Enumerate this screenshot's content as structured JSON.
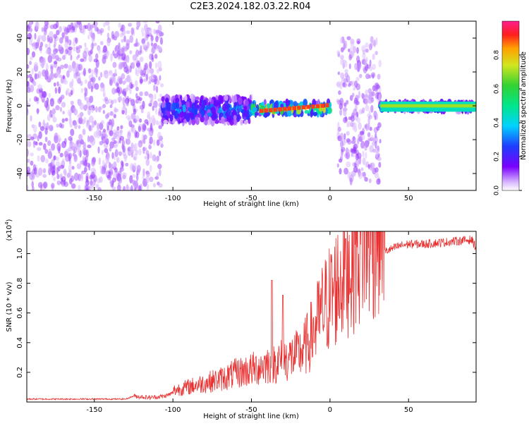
{
  "title": "C2E3.2024.182.03.22.R04",
  "colors": {
    "axis": "#000000",
    "snr_line": "#e83030",
    "spectro_low": "#7a00ff",
    "spectro_mid_blue": "#1e64ff",
    "spectro_cyan": "#00e6c8",
    "spectro_green": "#32d232",
    "spectro_red": "#ff1e1e"
  },
  "colorbar": {
    "label": "Normalized spectral amplitude",
    "ticks": [
      "0.0",
      "0.2",
      "0.4",
      "0.6",
      "0.8"
    ],
    "tick_values": [
      0.0,
      0.2,
      0.4,
      0.6,
      0.8
    ],
    "range": [
      0,
      1
    ],
    "colormap": "rainbow (purple-blue-cyan-green-yellow-orange-red-magenta)"
  },
  "chart_data": [
    {
      "type": "heatmap",
      "xlabel": "Height of straight line (km)",
      "ylabel": "Frequency (Hz)",
      "xlim": [
        -193,
        93
      ],
      "ylim": [
        -50,
        50
      ],
      "xticks": [
        -150,
        -100,
        -50,
        0,
        50
      ],
      "xtick_labels": [
        "-150",
        "-100",
        "-50",
        "0",
        "50"
      ],
      "yticks": [
        -40,
        -20,
        0,
        20,
        40
      ],
      "ytick_labels": [
        "-40",
        "-20",
        "0",
        "20",
        "40"
      ],
      "grid": false,
      "regions": [
        {
          "x_range": [
            -193,
            -130
          ],
          "freq_range": [
            -50,
            50
          ],
          "amplitude": 0.1
        },
        {
          "x_range": [
            -130,
            -107
          ],
          "freq_range": [
            -50,
            50
          ],
          "amplitude": 0.1
        },
        {
          "x_range": [
            -107,
            -50
          ],
          "freq_range": [
            -10,
            5
          ],
          "amplitude": 0.35
        },
        {
          "x_range": [
            -50,
            0
          ],
          "freq_range": [
            -5,
            2
          ],
          "amplitude": 0.85
        },
        {
          "x_range": [
            5,
            32
          ],
          "freq_range": [
            -45,
            40
          ],
          "amplitude": 0.1
        },
        {
          "x_range": [
            32,
            93
          ],
          "freq_range": [
            -3,
            2
          ],
          "amplitude": 0.5
        }
      ]
    },
    {
      "type": "line",
      "xlabel": "Height of straight line (km)",
      "ylabel": "SNR (10 * v/v)",
      "y_multiplier": "(x10",
      "y_multiplier_exp": "4",
      "xlim": [
        -193,
        93
      ],
      "ylim": [
        0,
        1.15
      ],
      "xticks": [
        -150,
        -100,
        -50,
        0,
        50
      ],
      "xtick_labels": [
        "-150",
        "-100",
        "-50",
        "0",
        "50"
      ],
      "yticks": [
        0.2,
        0.4,
        0.6,
        0.8,
        1.0
      ],
      "ytick_labels": [
        "0.2",
        "0.4",
        "0.6",
        "0.8",
        "1.0"
      ],
      "grid": false,
      "series": [
        {
          "x": [
            -193,
            -170,
            -150,
            -130,
            -125,
            -115,
            -105,
            -100,
            -90,
            -80,
            -70,
            -60,
            -50,
            -40,
            -30,
            -20,
            -15,
            -10,
            -5,
            0,
            5,
            10,
            15,
            20,
            25,
            30,
            35,
            40,
            45,
            50,
            60,
            70,
            80,
            90,
            93
          ],
          "y": [
            0.02,
            0.02,
            0.02,
            0.02,
            0.04,
            0.03,
            0.04,
            0.06,
            0.08,
            0.1,
            0.12,
            0.15,
            0.17,
            0.2,
            0.22,
            0.25,
            0.3,
            0.38,
            0.48,
            0.55,
            0.62,
            0.72,
            0.78,
            0.85,
            0.88,
            0.95,
            1.02,
            1.04,
            1.06,
            1.07,
            1.07,
            1.08,
            1.09,
            1.1,
            1.05
          ],
          "peaks": [
            {
              "x": -37,
              "y": 0.82
            },
            {
              "x": -30,
              "y": 0.72
            },
            {
              "x": -10,
              "y": 0.4
            },
            {
              "x": 10,
              "y": 1.1
            }
          ]
        }
      ]
    }
  ]
}
